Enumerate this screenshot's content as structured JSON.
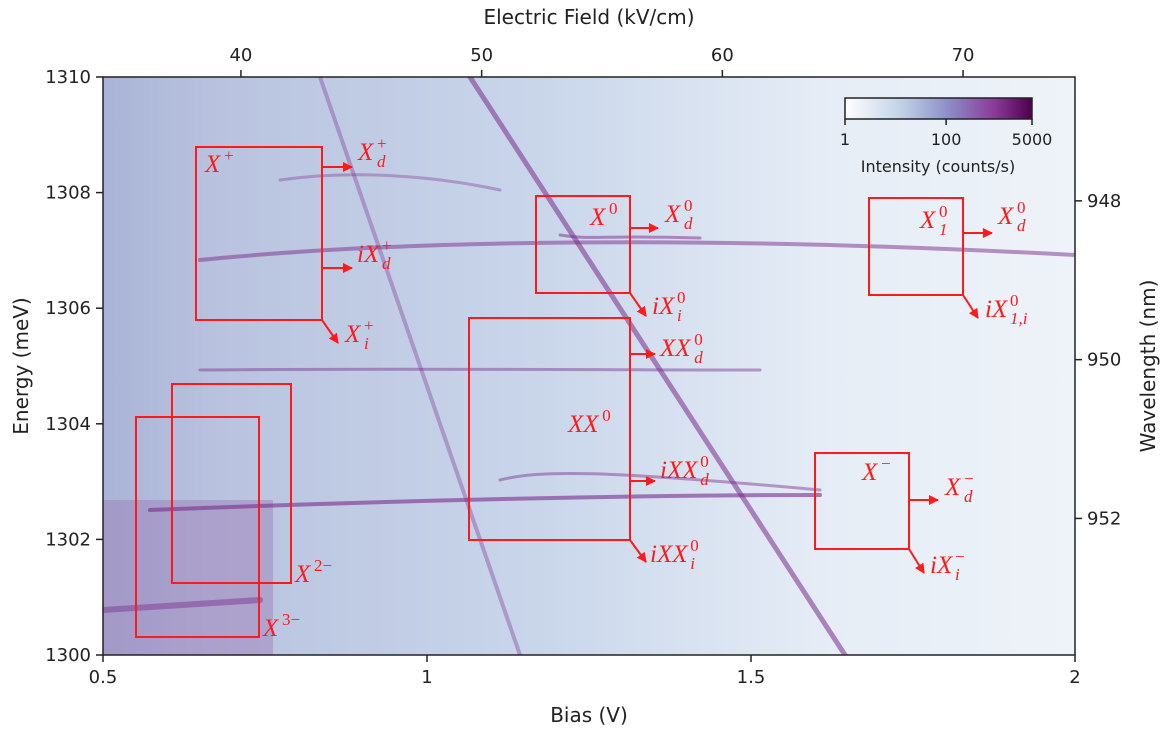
{
  "chart_data": {
    "type": "heatmap",
    "xlabel": "Bias (V)",
    "ylabel": "Energy (meV)",
    "x2label": "Electric Field (kV/cm)",
    "y2label": "Wavelength (nm)",
    "xlim": [
      0.5,
      2
    ],
    "xticks": [
      0.5,
      1,
      1.5,
      2
    ],
    "ylim": [
      1300,
      1310
    ],
    "yticks": [
      1300,
      1302,
      1304,
      1306,
      1308,
      1310
    ],
    "x2lim": [
      34.27,
      74.65
    ],
    "x2ticks": [
      40,
      50,
      60,
      70
    ],
    "y2lim": [
      946.44,
      953.72
    ],
    "y2ticks": [
      948,
      950,
      952
    ],
    "colorbar": {
      "label": "Intensity (counts/s)",
      "scale": "log",
      "lim": [
        1,
        5000
      ],
      "ticks": [
        1,
        100,
        5000
      ]
    },
    "annotations": [
      {
        "base": "X",
        "sup": "+"
      },
      {
        "base": "X",
        "sup": "+",
        "sub": "d"
      },
      {
        "base": "iX",
        "sup": "+",
        "sub": "d"
      },
      {
        "base": "X",
        "sup": "+",
        "sub": "i"
      },
      {
        "base": "X",
        "sup": "0"
      },
      {
        "base": "X",
        "sup": "0",
        "sub": "d"
      },
      {
        "base": "iX",
        "sup": "0",
        "sub": "i"
      },
      {
        "base": "XX",
        "sup": "0",
        "sub": "d"
      },
      {
        "base": "XX",
        "sup": "0"
      },
      {
        "base": "iXX",
        "sup": "0",
        "sub": "d"
      },
      {
        "base": "iXX",
        "sup": "0",
        "sub": "i"
      },
      {
        "base": "X",
        "sup": "0",
        "sub": "1"
      },
      {
        "base": "X",
        "sup": "0",
        "sub": "d"
      },
      {
        "base": "iX",
        "sup": "0",
        "sub": "1,i"
      },
      {
        "base": "X",
        "sup": "−"
      },
      {
        "base": "X",
        "sup": "−",
        "sub": "d"
      },
      {
        "base": "iX",
        "sup": "−",
        "sub": "i"
      },
      {
        "base": "X",
        "sup": "2−"
      },
      {
        "base": "X",
        "sup": "3−"
      }
    ]
  }
}
